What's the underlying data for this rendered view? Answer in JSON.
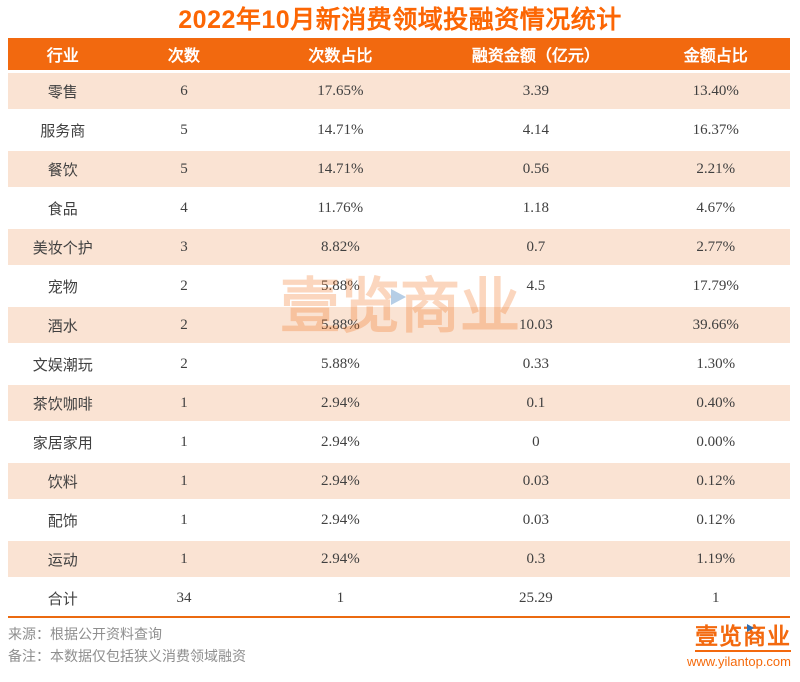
{
  "title": "2022年10月新消费领域投融资情况统计",
  "chart_data": {
    "type": "table",
    "title": "2022年10月新消费领域投融资情况统计",
    "columns": [
      "行业",
      "次数",
      "次数占比",
      "融资金额（亿元）",
      "金额占比"
    ],
    "rows": [
      [
        "零售",
        "6",
        "17.65%",
        "3.39",
        "13.40%"
      ],
      [
        "服务商",
        "5",
        "14.71%",
        "4.14",
        "16.37%"
      ],
      [
        "餐饮",
        "5",
        "14.71%",
        "0.56",
        "2.21%"
      ],
      [
        "食品",
        "4",
        "11.76%",
        "1.18",
        "4.67%"
      ],
      [
        "美妆个护",
        "3",
        "8.82%",
        "0.7",
        "2.77%"
      ],
      [
        "宠物",
        "2",
        "5.88%",
        "4.5",
        "17.79%"
      ],
      [
        "酒水",
        "2",
        "5.88%",
        "10.03",
        "39.66%"
      ],
      [
        "文娱潮玩",
        "2",
        "5.88%",
        "0.33",
        "1.30%"
      ],
      [
        "茶饮咖啡",
        "1",
        "2.94%",
        "0.1",
        "0.40%"
      ],
      [
        "家居家用",
        "1",
        "2.94%",
        "0",
        "0.00%"
      ],
      [
        "饮料",
        "1",
        "2.94%",
        "0.03",
        "0.12%"
      ],
      [
        "配饰",
        "1",
        "2.94%",
        "0.03",
        "0.12%"
      ],
      [
        "运动",
        "1",
        "2.94%",
        "0.3",
        "1.19%"
      ],
      [
        "合计",
        "34",
        "1",
        "25.29",
        "1"
      ]
    ],
    "layout": {
      "header_bg": "#F2690F",
      "alt_row_bg": "#FAE3D3",
      "all_text_centered": true
    }
  },
  "watermark": {
    "text": "壹览商业"
  },
  "footer": {
    "source": "来源：根据公开资料查询",
    "note": "备注：本数据仅包括狭义消费领域融资",
    "logo_text": "壹览商业",
    "logo_url": "www.yilantop.com"
  },
  "colors": {
    "title": "#FC6604",
    "header_bg": "#F2690F",
    "header_text": "#FFFFFF",
    "alt_row_bg": "#FAE3D3",
    "body_text": "#404040",
    "footer_text": "#8E8E8E",
    "logo_orange": "#F3690E",
    "watermark_orange_alpha": "rgba(242,108,22,0.28)",
    "triangle_blue": "#A9C6E2",
    "bottom_line": "#EB6A10"
  }
}
